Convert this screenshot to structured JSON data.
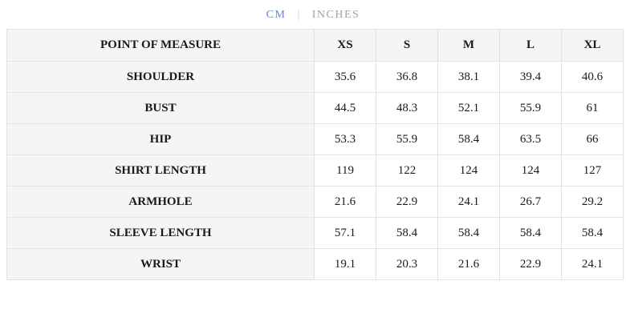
{
  "unit_toggle": {
    "cm_label": "CM",
    "inches_label": "INCHES",
    "separator": "|",
    "active_unit": "CM"
  },
  "table": {
    "headers": {
      "point_of_measure": "POINT OF MEASURE",
      "xs": "XS",
      "s": "S",
      "m": "M",
      "l": "L",
      "xl": "XL"
    },
    "rows": [
      {
        "label": "SHOULDER",
        "values": [
          "35.6",
          "36.8",
          "38.1",
          "39.4",
          "40.6"
        ]
      },
      {
        "label": "BUST",
        "values": [
          "44.5",
          "48.3",
          "52.1",
          "55.9",
          "61"
        ]
      },
      {
        "label": "HIP",
        "values": [
          "53.3",
          "55.9",
          "58.4",
          "63.5",
          "66"
        ]
      },
      {
        "label": "SHIRT LENGTH",
        "values": [
          "119",
          "122",
          "124",
          "124",
          "127"
        ]
      },
      {
        "label": "ARMHOLE",
        "values": [
          "21.6",
          "22.9",
          "24.1",
          "26.7",
          "29.2"
        ]
      },
      {
        "label": "SLEEVE LENGTH",
        "values": [
          "57.1",
          "58.4",
          "58.4",
          "58.4",
          "58.4"
        ]
      },
      {
        "label": "WRIST",
        "values": [
          "19.1",
          "20.3",
          "21.6",
          "22.9",
          "24.1"
        ]
      }
    ]
  },
  "colors": {
    "accent_active_unit": "#5d8cd2",
    "inactive_unit": "#a2a2a2",
    "header_and_label_bg": "#f5f5f5",
    "table_border": "#e3e3e3",
    "text": "#1a1a1a"
  }
}
